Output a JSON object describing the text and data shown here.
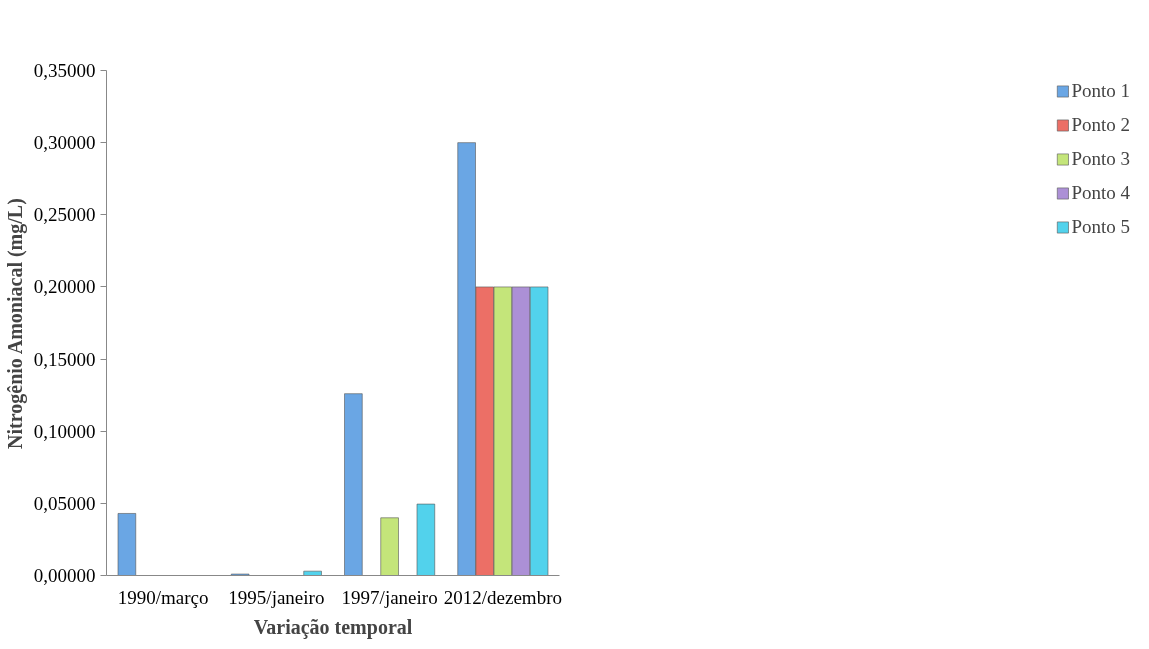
{
  "chart_data": {
    "type": "bar",
    "xlabel": "Variação temporal",
    "ylabel": "Nitrogênio Amoniacal (mg/L)",
    "categories": [
      "1990/março",
      "1995/janeiro",
      "1997/janeiro",
      "2012/dezembro"
    ],
    "series": [
      {
        "name": "Ponto 1",
        "color": "#6aa6e4",
        "values": [
          0.043,
          0.001,
          0.126,
          0.3
        ]
      },
      {
        "name": "Ponto 2",
        "color": "#ec6f66",
        "values": [
          null,
          null,
          null,
          0.2
        ]
      },
      {
        "name": "Ponto 3",
        "color": "#c4e57a",
        "values": [
          null,
          null,
          0.04,
          0.2
        ]
      },
      {
        "name": "Ponto 4",
        "color": "#ac90d6",
        "values": [
          null,
          null,
          null,
          0.2
        ]
      },
      {
        "name": "Ponto 5",
        "color": "#52d2ec",
        "values": [
          null,
          0.003,
          0.0495,
          0.2
        ]
      }
    ],
    "ylim": [
      0,
      0.35
    ],
    "yticks": [
      {
        "value": 0,
        "label": "0,00000"
      },
      {
        "value": 0.05,
        "label": "0,05000"
      },
      {
        "value": 0.1,
        "label": "0,10000"
      },
      {
        "value": 0.15,
        "label": "0,15000"
      },
      {
        "value": 0.2,
        "label": "0,20000"
      },
      {
        "value": 0.25,
        "label": "0,25000"
      },
      {
        "value": 0.3,
        "label": "0,30000"
      },
      {
        "value": 0.35,
        "label": "0,35000"
      }
    ],
    "grid": false,
    "legend": "right"
  }
}
